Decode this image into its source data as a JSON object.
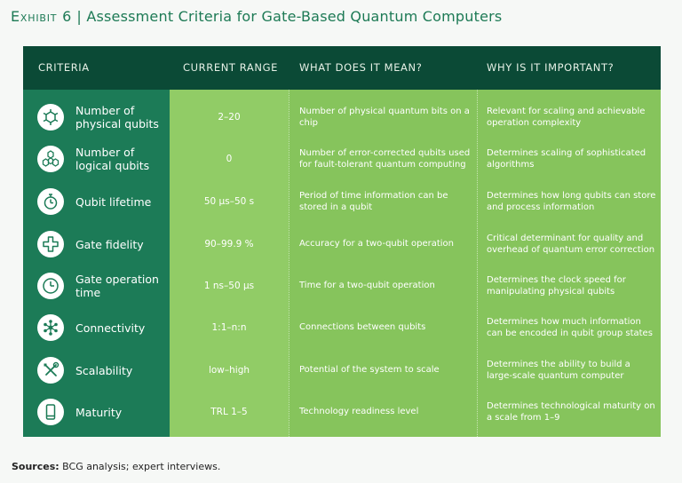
{
  "title": {
    "exhibit": "Exhibit 6",
    "separator": " | ",
    "text": "Assessment Criteria for Gate-Based Quantum Computers"
  },
  "headers": {
    "criteria": "CRITERIA",
    "range": "CURRENT RANGE",
    "meaning": "WHAT DOES IT MEAN?",
    "importance": "WHY IS IT IMPORTANT?"
  },
  "rows": [
    {
      "icon": "single-hexagon-qubit-icon",
      "criteria": "Number of physical qubits",
      "range": "2–20",
      "meaning": "Number of physical quantum bits on a chip",
      "importance": "Relevant for scaling and achievable operation complexity"
    },
    {
      "icon": "hexagon-cluster-icon",
      "criteria": "Number of logical qubits",
      "range": "0",
      "meaning": "Number of error-corrected qubits used for fault-tolerant quantum computing",
      "importance": "Determines scaling of sophisticated algorithms"
    },
    {
      "icon": "stopwatch-icon",
      "criteria": "Qubit lifetime",
      "range": "50 µs–50 s",
      "meaning": "Period of time information can be stored in a qubit",
      "importance": "Determines how long qubits can store and process information"
    },
    {
      "icon": "shield-plus-icon",
      "criteria": "Gate fidelity",
      "range": "90–99.9 %",
      "meaning": "Accuracy for a two-qubit operation",
      "importance": "Critical determinant for quality and overhead of quantum error correction"
    },
    {
      "icon": "clock-icon",
      "criteria": "Gate operation time",
      "range": "1 ns–50 µs",
      "meaning": "Time for a two-qubit operation",
      "importance": "Determines the clock speed for manipulating physical qubits"
    },
    {
      "icon": "network-nodes-icon",
      "criteria": "Connectivity",
      "range": "1:1–n:n",
      "meaning": "Connections between qubits",
      "importance": "Determines how much information can be encoded in qubit group states"
    },
    {
      "icon": "wrench-screwdriver-icon",
      "criteria": "Scalability",
      "range": "low–high",
      "meaning": "Potential of the system to scale",
      "importance": "Determines the ability to build a large-scale quantum computer"
    },
    {
      "icon": "smartphone-icon",
      "criteria": "Maturity",
      "range": "TRL 1–5",
      "meaning": "Technology readiness level",
      "importance": "Determines technological maturity on a scale from 1–9"
    }
  ],
  "sources": {
    "label": "Sources:",
    "text": " BCG analysis; expert interviews."
  },
  "colors": {
    "title": "#1d7a55",
    "header_bg": "#0b4a36",
    "criteria_col": "#1c7b57",
    "range_col": "#91cc66",
    "body_bg": "#86c45c"
  }
}
